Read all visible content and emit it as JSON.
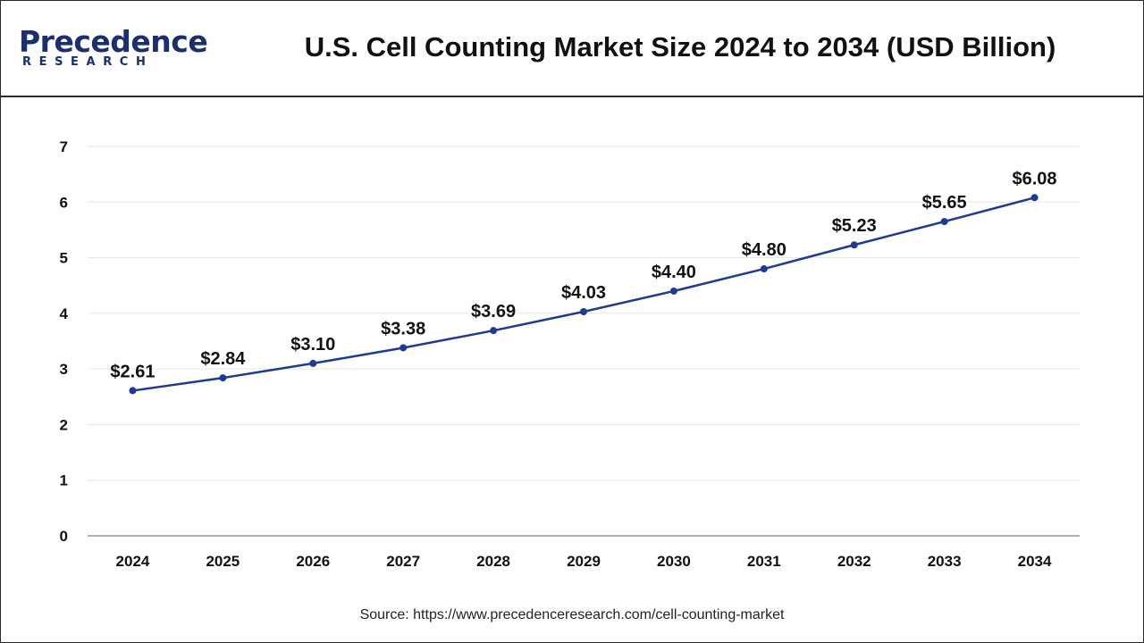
{
  "brand": {
    "name": "Precedence",
    "sub": "RESEARCH"
  },
  "colors": {
    "line": "#1f3a93",
    "grid": "#e6e6e6",
    "axis": "#9a9a9a",
    "text": "#111111"
  },
  "chart_data": {
    "type": "line",
    "title": "U.S. Cell Counting Market Size 2024 to 2034 (USD Billion)",
    "categories": [
      "2024",
      "2025",
      "2026",
      "2027",
      "2028",
      "2029",
      "2030",
      "2031",
      "2032",
      "2033",
      "2034"
    ],
    "values": [
      2.61,
      2.84,
      3.1,
      3.38,
      3.69,
      4.03,
      4.4,
      4.8,
      5.23,
      5.65,
      6.08
    ],
    "data_labels": [
      "$2.61",
      "$2.84",
      "$3.10",
      "$3.38",
      "$3.69",
      "$4.03",
      "$4.40",
      "$4.80",
      "$5.23",
      "$5.65",
      "$6.08"
    ],
    "ylim": [
      0,
      7
    ],
    "yticks": [
      "0",
      "1",
      "2",
      "3",
      "4",
      "5",
      "6",
      "7"
    ],
    "xlabel": "",
    "ylabel": "",
    "grid": true,
    "legend": "none"
  },
  "source": "Source: https://www.precedenceresearch.com/cell-counting-market"
}
